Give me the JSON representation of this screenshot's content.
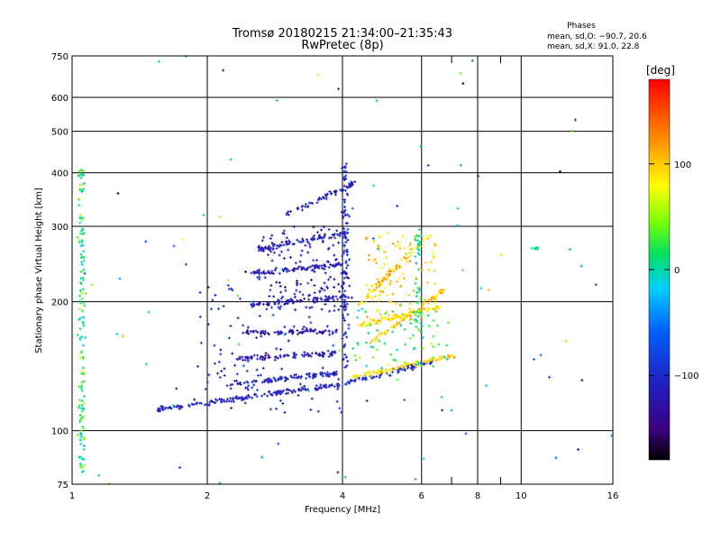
{
  "chart_data": {
    "type": "scatter",
    "title": "Tromsø 20180215 21:34:00–21:35:43",
    "subtitle": "RwPretec (8p)",
    "stats": {
      "heading": "Phases",
      "line_o": "mean, sd,O: −90.7, 20.6",
      "line_x": "mean, sd,X:  91.0, 22.8"
    },
    "xlabel": "Frequency [MHz]",
    "ylabel": "Stationary phase Virtual Height [km]",
    "x_scale": "log",
    "y_scale": "log",
    "xlim": [
      1,
      16
    ],
    "ylim": [
      75,
      750
    ],
    "xticks": [
      1,
      2,
      4,
      6,
      8,
      10,
      16
    ],
    "xtick_labels": [
      "1",
      "2",
      "4",
      "6",
      "8",
      "10",
      "16"
    ],
    "x_minor_ticks": [
      7,
      9
    ],
    "yticks": [
      75,
      100,
      200,
      300,
      400,
      500,
      600,
      750
    ],
    "ytick_labels": [
      "75",
      "100",
      "200",
      "300",
      "400",
      "500",
      "600",
      "750"
    ],
    "grid": true,
    "colorbar": {
      "label": "[deg]",
      "range": [
        -180,
        180
      ],
      "ticks": [
        100,
        0,
        -100
      ],
      "tick_labels": [
        "100",
        "0",
        "−100"
      ]
    },
    "traces": [
      {
        "kind": "curve",
        "f_start": 1.55,
        "f_end": 3.9,
        "h_start": 112,
        "h_end": 128,
        "phase": -110,
        "phase_spread": 15
      },
      {
        "kind": "curve",
        "f_start": 3.9,
        "f_end": 6.4,
        "h_start": 128,
        "h_end": 145,
        "phase": -100,
        "phase_spread": 20
      },
      {
        "kind": "curve",
        "f_start": 4.2,
        "f_end": 7.1,
        "h_start": 133,
        "h_end": 150,
        "phase": 95,
        "phase_spread": 25
      },
      {
        "kind": "curve",
        "f_start": 2.2,
        "f_end": 3.9,
        "h_start": 128,
        "h_end": 136,
        "phase": -110,
        "phase_spread": 20
      },
      {
        "kind": "curve",
        "f_start": 2.3,
        "f_end": 3.9,
        "h_start": 147,
        "h_end": 152,
        "phase": -120,
        "phase_spread": 25
      },
      {
        "kind": "curve",
        "f_start": 2.4,
        "f_end": 3.9,
        "h_start": 170,
        "h_end": 170,
        "phase": -125,
        "phase_spread": 25
      },
      {
        "kind": "curve",
        "f_start": 2.5,
        "f_end": 4.0,
        "h_start": 197,
        "h_end": 205,
        "phase": -120,
        "phase_spread": 25
      },
      {
        "kind": "curve",
        "f_start": 2.5,
        "f_end": 4.0,
        "h_start": 232,
        "h_end": 245,
        "phase": -115,
        "phase_spread": 20
      },
      {
        "kind": "curve",
        "f_start": 2.6,
        "f_end": 4.1,
        "h_start": 265,
        "h_end": 290,
        "phase": -110,
        "phase_spread": 20
      },
      {
        "kind": "curve",
        "f_start": 3.0,
        "f_end": 4.3,
        "h_start": 320,
        "h_end": 380,
        "phase": -110,
        "phase_spread": 20
      },
      {
        "kind": "curve",
        "f_start": 4.6,
        "f_end": 6.8,
        "h_start": 160,
        "h_end": 215,
        "phase": 100,
        "phase_spread": 20
      },
      {
        "kind": "curve",
        "f_start": 4.3,
        "f_end": 6.2,
        "h_start": 195,
        "h_end": 285,
        "phase": 95,
        "phase_spread": 30
      },
      {
        "kind": "curve",
        "f_start": 4.3,
        "f_end": 6.6,
        "h_start": 175,
        "h_end": 195,
        "phase": 90,
        "phase_spread": 25
      },
      {
        "kind": "vertical",
        "f": 4.05,
        "h_start": 140,
        "h_end": 420,
        "phase": -100,
        "phase_spread": 20
      },
      {
        "kind": "vertical",
        "f": 1.05,
        "h_start": 80,
        "h_end": 410,
        "phase": 20,
        "phase_spread": 40
      },
      {
        "kind": "vertical",
        "f": 5.9,
        "h_start": 170,
        "h_end": 300,
        "phase": 10,
        "phase_spread": 40
      },
      {
        "kind": "cloud",
        "f_min": 2.6,
        "f_max": 4.2,
        "h_min": 190,
        "h_max": 300,
        "n": 140,
        "phase": -115,
        "phase_spread": 25
      },
      {
        "kind": "cloud",
        "f_min": 1.9,
        "f_max": 4.0,
        "h_min": 110,
        "h_max": 220,
        "n": 120,
        "phase": -105,
        "phase_spread": 25
      },
      {
        "kind": "cloud",
        "f_min": 4.5,
        "f_max": 6.5,
        "h_min": 180,
        "h_max": 290,
        "n": 120,
        "phase": 100,
        "phase_spread": 30
      },
      {
        "kind": "cloud",
        "f_min": 4.2,
        "f_max": 6.9,
        "h_min": 140,
        "h_max": 200,
        "n": 70,
        "phase": 20,
        "phase_spread": 40
      },
      {
        "kind": "cloud",
        "f_min": 1.0,
        "f_max": 16,
        "h_min": 75,
        "h_max": 750,
        "n": 90,
        "phase": -40,
        "phase_spread": 120
      },
      {
        "kind": "cluster",
        "f": 10.8,
        "h": 266,
        "n": 8,
        "phase": 5,
        "phase_spread": 10
      }
    ]
  }
}
